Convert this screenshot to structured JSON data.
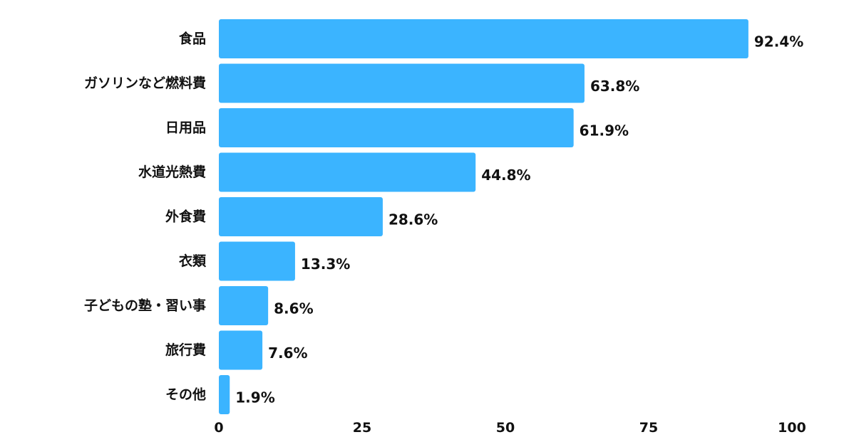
{
  "chart_data": {
    "type": "bar",
    "orientation": "horizontal",
    "categories": [
      "食品",
      "ガソリンなど燃料費",
      "日用品",
      "水道光熱費",
      "外食費",
      "衣類",
      "子どもの塾・習い事",
      "旅行費",
      "その他"
    ],
    "values": [
      92.4,
      63.8,
      61.9,
      44.8,
      28.6,
      13.3,
      8.6,
      7.6,
      1.9
    ],
    "value_labels": [
      "92.4%",
      "63.8%",
      "61.9%",
      "44.8%",
      "28.6%",
      "13.3%",
      "8.6%",
      "7.6%",
      "1.9%"
    ],
    "xlim": [
      0,
      100
    ],
    "xticks": [
      0,
      25,
      50,
      75,
      100
    ],
    "xtick_labels": [
      "0",
      "25",
      "50",
      "75",
      "100"
    ],
    "bar_color": "#3bb4ff",
    "grid": false,
    "legend": "none"
  }
}
